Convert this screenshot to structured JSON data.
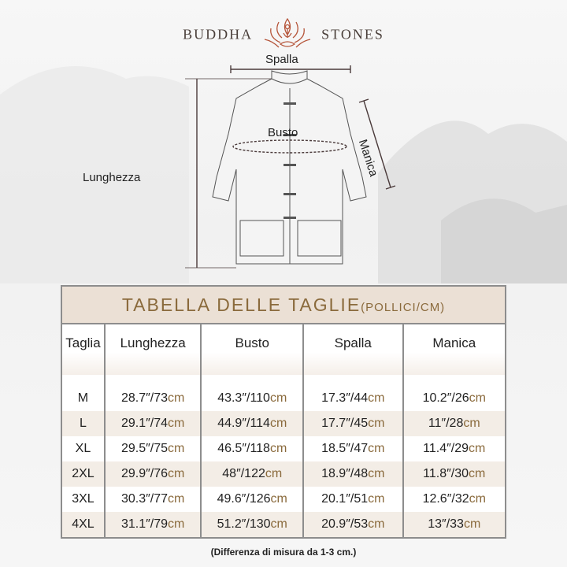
{
  "brand": {
    "left": "BUDDHA",
    "right": "STONES",
    "logo_icon": "lotus-meditation-icon",
    "logo_color": "#b5553a"
  },
  "diagram": {
    "shoulder": "Spalla",
    "chest": "Busto",
    "sleeve": "Manica",
    "length": "Lunghezza"
  },
  "table": {
    "title": "TABELLA DELLE TAGLIE",
    "title_units": "(POLLICI/CM)",
    "headers": [
      "Taglia",
      "Lunghezza",
      "Busto",
      "Spalla",
      "Manica"
    ],
    "unit": "cm",
    "rows": [
      {
        "size": "M",
        "values": [
          "28.7″/73",
          "43.3″/110",
          "17.3″/44",
          "10.2″/26"
        ]
      },
      {
        "size": "L",
        "values": [
          "29.1″/74",
          "44.9″/114",
          "17.7″/45",
          "11″/28"
        ]
      },
      {
        "size": "XL",
        "values": [
          "29.5″/75",
          "46.5″/118",
          "18.5″/47",
          "11.4″/29"
        ]
      },
      {
        "size": "2XL",
        "values": [
          "29.9″/76",
          "48″/122",
          "18.9″/48",
          "11.8″/30"
        ]
      },
      {
        "size": "3XL",
        "values": [
          "30.3″/77",
          "49.6″/126",
          "20.1″/51",
          "12.6″/32"
        ]
      },
      {
        "size": "4XL",
        "values": [
          "31.1″/79",
          "51.2″/130",
          "20.9″/53",
          "13″/33"
        ]
      }
    ],
    "accent_color": "#8a6a3c"
  },
  "note": "(Differenza di misura da 1-3 cm.)"
}
